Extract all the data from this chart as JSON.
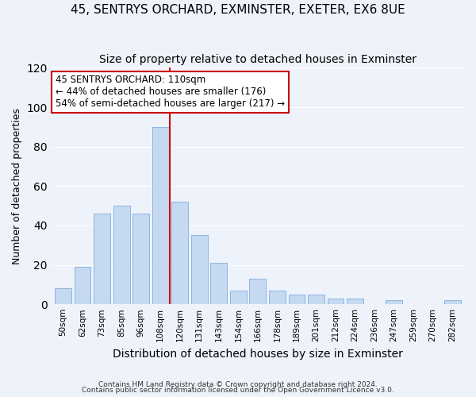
{
  "title": "45, SENTRYS ORCHARD, EXMINSTER, EXETER, EX6 8UE",
  "subtitle": "Size of property relative to detached houses in Exminster",
  "xlabel": "Distribution of detached houses by size in Exminster",
  "ylabel": "Number of detached properties",
  "bar_labels": [
    "50sqm",
    "62sqm",
    "73sqm",
    "85sqm",
    "96sqm",
    "108sqm",
    "120sqm",
    "131sqm",
    "143sqm",
    "154sqm",
    "166sqm",
    "178sqm",
    "189sqm",
    "201sqm",
    "212sqm",
    "224sqm",
    "236sqm",
    "247sqm",
    "259sqm",
    "270sqm",
    "282sqm"
  ],
  "bar_values": [
    8,
    19,
    46,
    50,
    46,
    90,
    52,
    35,
    21,
    7,
    13,
    7,
    5,
    5,
    3,
    3,
    0,
    2,
    0,
    0,
    2
  ],
  "bar_color": "#c5d9f1",
  "bar_edge_color": "#8db4e2",
  "vline_x": 5.5,
  "vline_color": "#cc0000",
  "ylim": [
    0,
    120
  ],
  "yticks": [
    0,
    20,
    40,
    60,
    80,
    100,
    120
  ],
  "annotation_title": "45 SENTRYS ORCHARD: 110sqm",
  "annotation_line1": "← 44% of detached houses are smaller (176)",
  "annotation_line2": "54% of semi-detached houses are larger (217) →",
  "annotation_box_color": "#ffffff",
  "annotation_box_edge": "#cc0000",
  "footer_line1": "Contains HM Land Registry data © Crown copyright and database right 2024.",
  "footer_line2": "Contains public sector information licensed under the Open Government Licence v3.0.",
  "background_color": "#eef2fa",
  "title_fontsize": 11,
  "subtitle_fontsize": 10,
  "ylabel_fontsize": 9,
  "xlabel_fontsize": 10
}
